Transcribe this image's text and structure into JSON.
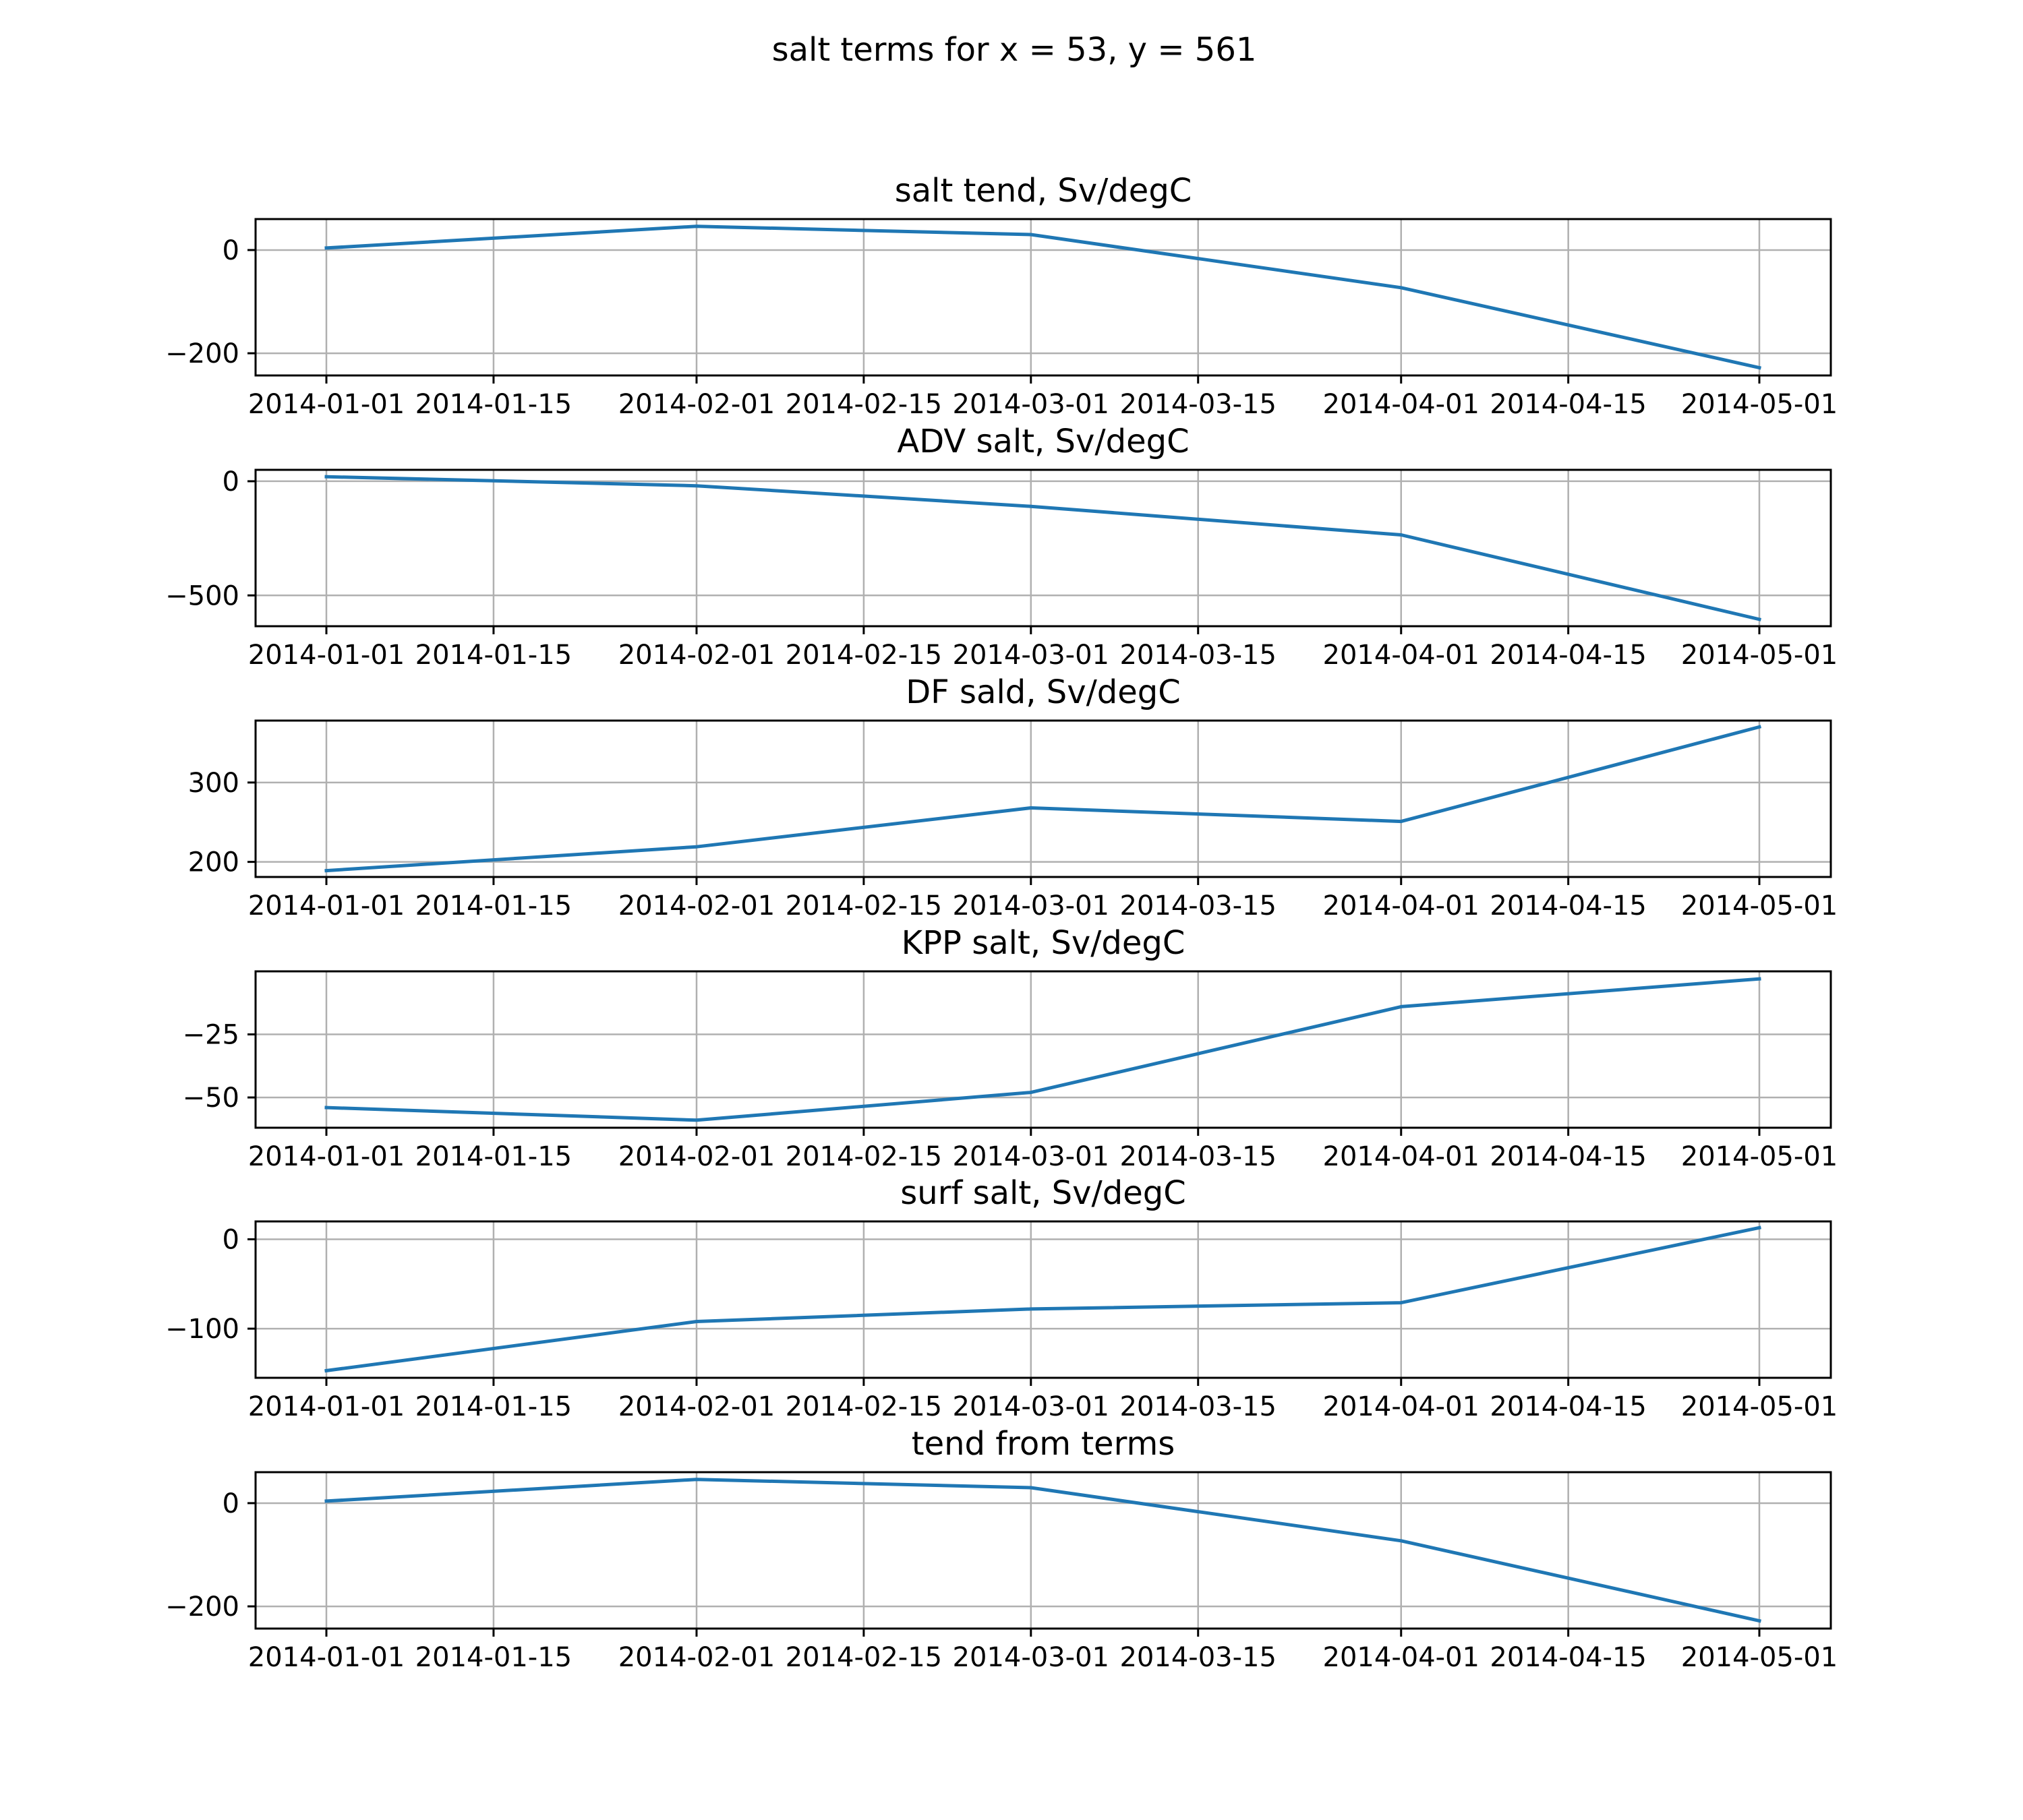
{
  "title": "salt terms for x = 53, y = 561",
  "colors": {
    "line": "#1f77b4",
    "grid": "#b0b0b0",
    "axes": "#000000"
  },
  "chart_data": [
    {
      "type": "line",
      "title": "salt tend, Sv/degC",
      "x": [
        "2014-01-01",
        "2014-02-01",
        "2014-03-01",
        "2014-04-01",
        "2014-05-01"
      ],
      "y": [
        4,
        46,
        30,
        -73,
        -228
      ],
      "ylim": [
        -243,
        60
      ],
      "yticks": [
        {
          "value": 0,
          "label": "0"
        },
        {
          "value": -200,
          "label": "−200"
        }
      ],
      "xticks": [
        {
          "value": "2014-01-01",
          "label": "2014-01-01"
        },
        {
          "value": "2014-01-15",
          "label": "2014-01-15"
        },
        {
          "value": "2014-02-01",
          "label": "2014-02-01"
        },
        {
          "value": "2014-02-15",
          "label": "2014-02-15"
        },
        {
          "value": "2014-03-01",
          "label": "2014-03-01"
        },
        {
          "value": "2014-03-15",
          "label": "2014-03-15"
        },
        {
          "value": "2014-04-01",
          "label": "2014-04-01"
        },
        {
          "value": "2014-04-15",
          "label": "2014-04-15"
        },
        {
          "value": "2014-05-01",
          "label": "2014-05-01"
        }
      ],
      "grid": true
    },
    {
      "type": "line",
      "title": "ADV salt, Sv/degC",
      "x": [
        "2014-01-01",
        "2014-02-01",
        "2014-03-01",
        "2014-04-01",
        "2014-05-01"
      ],
      "y": [
        20,
        -20,
        -110,
        -235,
        -605
      ],
      "ylim": [
        -635,
        50
      ],
      "yticks": [
        {
          "value": 0,
          "label": "0"
        },
        {
          "value": -500,
          "label": "−500"
        }
      ],
      "xticks": [
        {
          "value": "2014-01-01",
          "label": "2014-01-01"
        },
        {
          "value": "2014-01-15",
          "label": "2014-01-15"
        },
        {
          "value": "2014-02-01",
          "label": "2014-02-01"
        },
        {
          "value": "2014-02-15",
          "label": "2014-02-15"
        },
        {
          "value": "2014-03-01",
          "label": "2014-03-01"
        },
        {
          "value": "2014-03-15",
          "label": "2014-03-15"
        },
        {
          "value": "2014-04-01",
          "label": "2014-04-01"
        },
        {
          "value": "2014-04-15",
          "label": "2014-04-15"
        },
        {
          "value": "2014-05-01",
          "label": "2014-05-01"
        }
      ],
      "grid": true
    },
    {
      "type": "line",
      "title": "DF sald, Sv/degC",
      "x": [
        "2014-01-01",
        "2014-02-01",
        "2014-03-01",
        "2014-04-01",
        "2014-05-01"
      ],
      "y": [
        189,
        219,
        268,
        251,
        370
      ],
      "ylim": [
        181,
        378
      ],
      "yticks": [
        {
          "value": 300,
          "label": "300"
        },
        {
          "value": 200,
          "label": "200"
        }
      ],
      "xticks": [
        {
          "value": "2014-01-01",
          "label": "2014-01-01"
        },
        {
          "value": "2014-01-15",
          "label": "2014-01-15"
        },
        {
          "value": "2014-02-01",
          "label": "2014-02-01"
        },
        {
          "value": "2014-02-15",
          "label": "2014-02-15"
        },
        {
          "value": "2014-03-01",
          "label": "2014-03-01"
        },
        {
          "value": "2014-03-15",
          "label": "2014-03-15"
        },
        {
          "value": "2014-04-01",
          "label": "2014-04-01"
        },
        {
          "value": "2014-04-15",
          "label": "2014-04-15"
        },
        {
          "value": "2014-05-01",
          "label": "2014-05-01"
        }
      ],
      "grid": true
    },
    {
      "type": "line",
      "title": "KPP salt, Sv/degC",
      "x": [
        "2014-01-01",
        "2014-02-01",
        "2014-03-01",
        "2014-04-01",
        "2014-05-01"
      ],
      "y": [
        -54,
        -59,
        -48,
        -14,
        -3
      ],
      "ylim": [
        -62,
        0
      ],
      "yticks": [
        {
          "value": -25,
          "label": "−25"
        },
        {
          "value": -50,
          "label": "−50"
        }
      ],
      "xticks": [
        {
          "value": "2014-01-01",
          "label": "2014-01-01"
        },
        {
          "value": "2014-01-15",
          "label": "2014-01-15"
        },
        {
          "value": "2014-02-01",
          "label": "2014-02-01"
        },
        {
          "value": "2014-02-15",
          "label": "2014-02-15"
        },
        {
          "value": "2014-03-01",
          "label": "2014-03-01"
        },
        {
          "value": "2014-03-15",
          "label": "2014-03-15"
        },
        {
          "value": "2014-04-01",
          "label": "2014-04-01"
        },
        {
          "value": "2014-04-15",
          "label": "2014-04-15"
        },
        {
          "value": "2014-05-01",
          "label": "2014-05-01"
        }
      ],
      "grid": true
    },
    {
      "type": "line",
      "title": "surf salt, Sv/degC",
      "x": [
        "2014-01-01",
        "2014-02-01",
        "2014-03-01",
        "2014-04-01",
        "2014-05-01"
      ],
      "y": [
        -147,
        -92,
        -78,
        -71,
        13
      ],
      "ylim": [
        -155,
        20
      ],
      "yticks": [
        {
          "value": 0,
          "label": "0"
        },
        {
          "value": -100,
          "label": "−100"
        }
      ],
      "xticks": [
        {
          "value": "2014-01-01",
          "label": "2014-01-01"
        },
        {
          "value": "2014-01-15",
          "label": "2014-01-15"
        },
        {
          "value": "2014-02-01",
          "label": "2014-02-01"
        },
        {
          "value": "2014-02-15",
          "label": "2014-02-15"
        },
        {
          "value": "2014-03-01",
          "label": "2014-03-01"
        },
        {
          "value": "2014-03-15",
          "label": "2014-03-15"
        },
        {
          "value": "2014-04-01",
          "label": "2014-04-01"
        },
        {
          "value": "2014-04-15",
          "label": "2014-04-15"
        },
        {
          "value": "2014-05-01",
          "label": "2014-05-01"
        }
      ],
      "grid": true
    },
    {
      "type": "line",
      "title": "tend from terms",
      "x": [
        "2014-01-01",
        "2014-02-01",
        "2014-03-01",
        "2014-04-01",
        "2014-05-01"
      ],
      "y": [
        4,
        46,
        30,
        -73,
        -228
      ],
      "ylim": [
        -243,
        60
      ],
      "yticks": [
        {
          "value": 0,
          "label": "0"
        },
        {
          "value": -200,
          "label": "−200"
        }
      ],
      "xticks": [
        {
          "value": "2014-01-01",
          "label": "2014-01-01"
        },
        {
          "value": "2014-01-15",
          "label": "2014-01-15"
        },
        {
          "value": "2014-02-01",
          "label": "2014-02-01"
        },
        {
          "value": "2014-02-15",
          "label": "2014-02-15"
        },
        {
          "value": "2014-03-01",
          "label": "2014-03-01"
        },
        {
          "value": "2014-03-15",
          "label": "2014-03-15"
        },
        {
          "value": "2014-04-01",
          "label": "2014-04-01"
        },
        {
          "value": "2014-04-15",
          "label": "2014-04-15"
        },
        {
          "value": "2014-05-01",
          "label": "2014-05-01"
        }
      ],
      "grid": true
    }
  ]
}
